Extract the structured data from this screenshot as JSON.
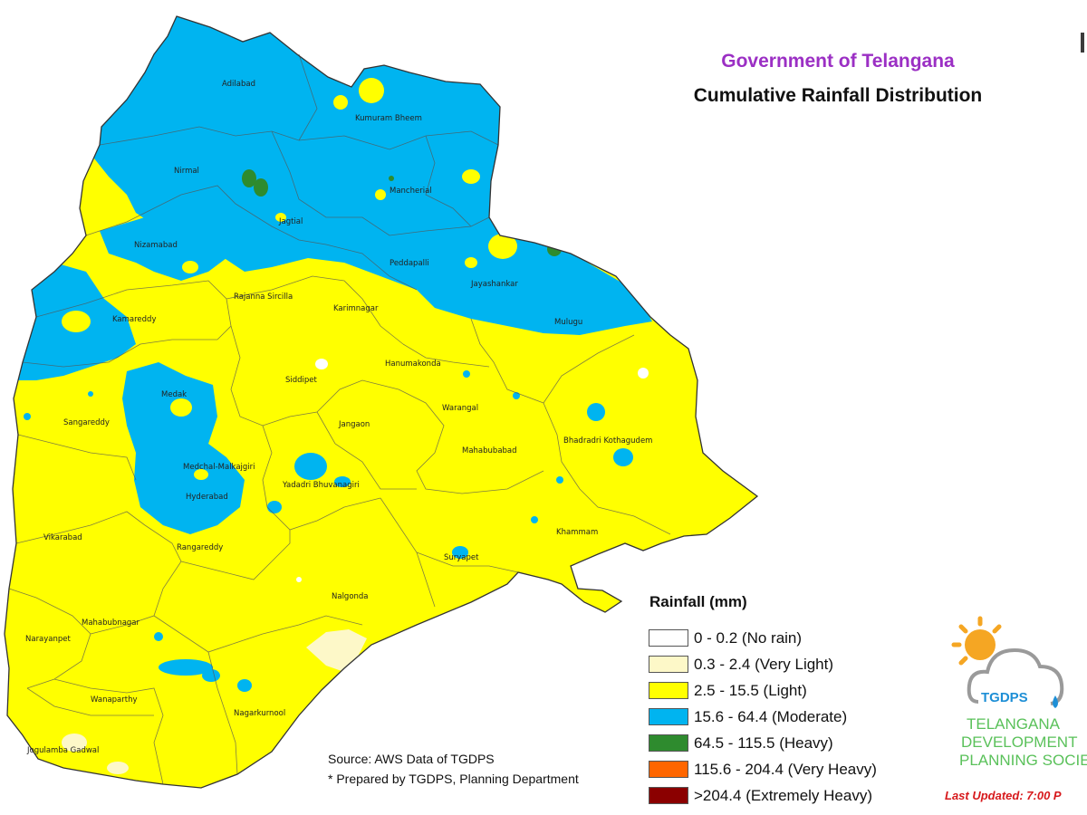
{
  "header": {
    "government": "Government of Telangana",
    "title": "Cumulative Rainfall Distribution"
  },
  "legend": {
    "title": "Rainfall (mm)",
    "items": [
      {
        "label": "0 - 0.2 (No rain)",
        "color": "#ffffff"
      },
      {
        "label": "0.3 - 2.4 (Very Light)",
        "color": "#fdf8c8"
      },
      {
        "label": "2.5 - 15.5 (Light)",
        "color": "#ffff00"
      },
      {
        "label": "15.6 - 64.4 (Moderate)",
        "color": "#00b4f0"
      },
      {
        "label": "64.5 - 115.5 (Heavy)",
        "color": "#2e8b2e"
      },
      {
        "label": "115.6 - 204.4 (Very Heavy)",
        "color": "#ff6600"
      },
      {
        "label": ">204.4 (Extremely Heavy)",
        "color": "#8b0000"
      }
    ]
  },
  "source": {
    "line1": "Source: AWS Data of TGDPS",
    "line2": "* Prepared by TGDPS, Planning Department"
  },
  "footer": {
    "last_updated": "Last Updated: 7:00 P"
  },
  "logo": {
    "short": "TGDPS",
    "line1": "TELANGANA",
    "line2": "DEVELOPMENT",
    "line3": "PLANNING SOCIET",
    "sun_color": "#f5a623",
    "cloud_color": "#9a9a9a"
  },
  "districts": [
    "Adilabad",
    "Kumuram Bheem",
    "Nirmal",
    "Mancherial",
    "Jagtial",
    "Nizamabad",
    "Peddapalli",
    "Jayashankar",
    "Kamareddy",
    "Rajanna Sircilla",
    "Karimnagar",
    "Mulugu",
    "Hanumakonda",
    "Siddipet",
    "Medak",
    "Warangal",
    "Sangareddy",
    "Jangaon",
    "Bhadradri Kothagudem",
    "Mahabubabad",
    "Medchal-Malkajgiri",
    "Yadadri Bhuvanagiri",
    "Hyderabad",
    "Vikarabad",
    "Khammam",
    "Suryapet",
    "Rangareddy",
    "Nalgonda",
    "Narayanpet",
    "Mahabubnagar",
    "Wanaparthy",
    "Nagarkurnool",
    "Jogulamba Gadwal"
  ]
}
